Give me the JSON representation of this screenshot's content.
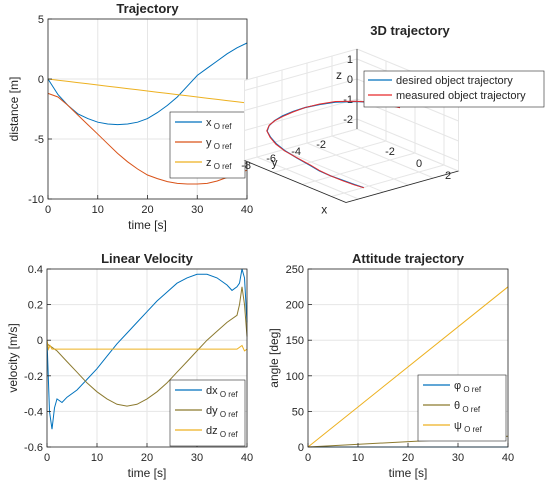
{
  "colors": {
    "blue": "#0072BD",
    "orange": "#D95319",
    "gold": "#EDB120",
    "olive": "#8C7A2F",
    "measured_red": "#E8292A",
    "grid": "#E6E6E6",
    "axis": "#262626"
  },
  "chart_data": [
    {
      "type": "line",
      "title": "Trajectory",
      "xlabel": "time [s]",
      "ylabel": "distance [m]",
      "xlim": [
        0,
        40
      ],
      "ylim": [
        -10,
        5
      ],
      "xticks": [
        0,
        10,
        20,
        30,
        40
      ],
      "yticks": [
        -10,
        -5,
        0,
        5
      ],
      "grid": true,
      "legend_position": "bottom-right",
      "x": [
        0,
        2,
        4,
        6,
        8,
        10,
        12,
        14,
        16,
        18,
        20,
        22,
        24,
        26,
        28,
        30,
        32,
        34,
        36,
        38,
        40
      ],
      "series": [
        {
          "name": "x",
          "sub": "O ref",
          "color_key": "blue",
          "values": [
            0,
            -1.3,
            -2.2,
            -2.9,
            -3.3,
            -3.6,
            -3.75,
            -3.8,
            -3.75,
            -3.6,
            -3.3,
            -2.8,
            -2.2,
            -1.5,
            -0.6,
            0.3,
            0.9,
            1.5,
            2.1,
            2.6,
            3.0
          ]
        },
        {
          "name": "y",
          "sub": "O ref",
          "color_key": "orange",
          "values": [
            -1.2,
            -1.5,
            -2.2,
            -3.0,
            -3.8,
            -4.6,
            -5.4,
            -6.2,
            -6.9,
            -7.5,
            -8.0,
            -8.3,
            -8.55,
            -8.7,
            -8.75,
            -8.75,
            -8.7,
            -8.5,
            -8.2,
            -7.9,
            -7.6
          ]
        },
        {
          "name": "z",
          "sub": "O ref",
          "color_key": "gold",
          "values": [
            0,
            -0.1,
            -0.2,
            -0.3,
            -0.4,
            -0.5,
            -0.6,
            -0.7,
            -0.8,
            -0.9,
            -1.0,
            -1.1,
            -1.2,
            -1.3,
            -1.4,
            -1.5,
            -1.6,
            -1.7,
            -1.8,
            -1.9,
            -2.0
          ]
        }
      ]
    },
    {
      "type": "line",
      "title": "3D trajectory",
      "xlabel": "x",
      "ylabel": "y",
      "zlabel": "z",
      "xticks": [
        -2,
        0,
        2
      ],
      "yticks": [
        -8,
        -6,
        -4,
        -2
      ],
      "zticks": [
        -2,
        -1,
        0,
        1
      ],
      "grid": true,
      "legend_position": "top-right",
      "t": [
        0,
        2,
        4,
        6,
        8,
        10,
        12,
        14,
        16,
        18,
        20,
        22,
        24,
        26,
        28,
        30,
        32,
        34,
        36,
        38,
        40
      ],
      "x": [
        0,
        -1.3,
        -2.2,
        -2.9,
        -3.3,
        -3.6,
        -3.75,
        -3.8,
        -3.75,
        -3.6,
        -3.3,
        -2.8,
        -2.2,
        -1.5,
        -0.6,
        0.3,
        0.9,
        1.5,
        2.1,
        2.6,
        3.0
      ],
      "y": [
        -1.2,
        -1.5,
        -2.2,
        -3.0,
        -3.8,
        -4.6,
        -5.4,
        -6.2,
        -6.9,
        -7.5,
        -8.0,
        -8.3,
        -8.55,
        -8.7,
        -8.75,
        -8.75,
        -8.7,
        -8.5,
        -8.2,
        -7.9,
        -7.6
      ],
      "z": [
        0,
        -0.1,
        -0.2,
        -0.3,
        -0.4,
        -0.5,
        -0.6,
        -0.7,
        -0.8,
        -0.9,
        -1.0,
        -1.1,
        -1.2,
        -1.3,
        -1.4,
        -1.5,
        -1.6,
        -1.7,
        -1.8,
        -1.9,
        -2.0
      ],
      "series": [
        {
          "name": "desired object trajectory",
          "color_key": "blue"
        },
        {
          "name": "measured object trajectory",
          "color_key": "measured_red"
        }
      ]
    },
    {
      "type": "line",
      "title": "Linear Velocity",
      "xlabel": "time [s]",
      "ylabel": "velocity [m/s]",
      "xlim": [
        0,
        40
      ],
      "ylim": [
        -0.6,
        0.4
      ],
      "xticks": [
        0,
        10,
        20,
        30,
        40
      ],
      "yticks": [
        -0.6,
        -0.4,
        -0.2,
        0,
        0.2,
        0.4
      ],
      "grid": true,
      "legend_position": "bottom-right",
      "series": [
        {
          "name": "dx",
          "sub": "O ref",
          "color_key": "blue",
          "x": [
            0,
            0.5,
            1,
            1.5,
            2,
            3,
            4,
            6,
            8,
            10,
            12,
            14,
            16,
            18,
            20,
            22,
            24,
            26,
            28,
            30,
            32,
            34,
            36,
            37,
            38,
            38.5,
            39,
            39.5,
            40
          ],
          "values": [
            0,
            -0.4,
            -0.5,
            -0.38,
            -0.33,
            -0.35,
            -0.32,
            -0.28,
            -0.22,
            -0.16,
            -0.09,
            -0.02,
            0.04,
            0.1,
            0.16,
            0.22,
            0.27,
            0.32,
            0.35,
            0.37,
            0.37,
            0.35,
            0.31,
            0.28,
            0.3,
            0.32,
            0.4,
            0.35,
            0.1
          ]
        },
        {
          "name": "dy",
          "sub": "O ref",
          "color_key": "olive",
          "x": [
            0,
            1,
            2,
            4,
            6,
            8,
            10,
            12,
            14,
            16,
            18,
            20,
            22,
            24,
            26,
            28,
            30,
            32,
            34,
            36,
            38,
            38.5,
            39,
            39.5,
            40
          ],
          "values": [
            -0.02,
            -0.04,
            -0.06,
            -0.12,
            -0.18,
            -0.24,
            -0.29,
            -0.33,
            -0.36,
            -0.37,
            -0.36,
            -0.33,
            -0.29,
            -0.24,
            -0.18,
            -0.12,
            -0.06,
            0.0,
            0.05,
            0.1,
            0.14,
            0.2,
            0.3,
            0.2,
            0.02
          ]
        },
        {
          "name": "dz",
          "sub": "O ref",
          "color_key": "gold",
          "x": [
            0,
            0.3,
            0.6,
            1,
            2,
            10,
            20,
            30,
            38,
            39,
            39.5,
            40
          ],
          "values": [
            0,
            -0.05,
            -0.03,
            -0.05,
            -0.05,
            -0.05,
            -0.05,
            -0.05,
            -0.05,
            -0.03,
            -0.06,
            -0.05
          ]
        }
      ]
    },
    {
      "type": "line",
      "title": "Attitude trajectory",
      "xlabel": "time [s]",
      "ylabel": "angle [deg]",
      "xlim": [
        0,
        40
      ],
      "ylim": [
        0,
        250
      ],
      "xticks": [
        0,
        10,
        20,
        30,
        40
      ],
      "yticks": [
        0,
        50,
        100,
        150,
        200,
        250
      ],
      "grid": true,
      "legend_position": "bottom-right",
      "x": [
        0,
        40
      ],
      "series": [
        {
          "name": "φ",
          "sub": "O ref",
          "color_key": "blue",
          "values": [
            0,
            0
          ]
        },
        {
          "name": "θ",
          "sub": "O ref",
          "color_key": "olive",
          "values": [
            0,
            15
          ]
        },
        {
          "name": "ψ",
          "sub": "O ref",
          "color_key": "gold",
          "values": [
            0,
            225
          ]
        }
      ]
    }
  ]
}
